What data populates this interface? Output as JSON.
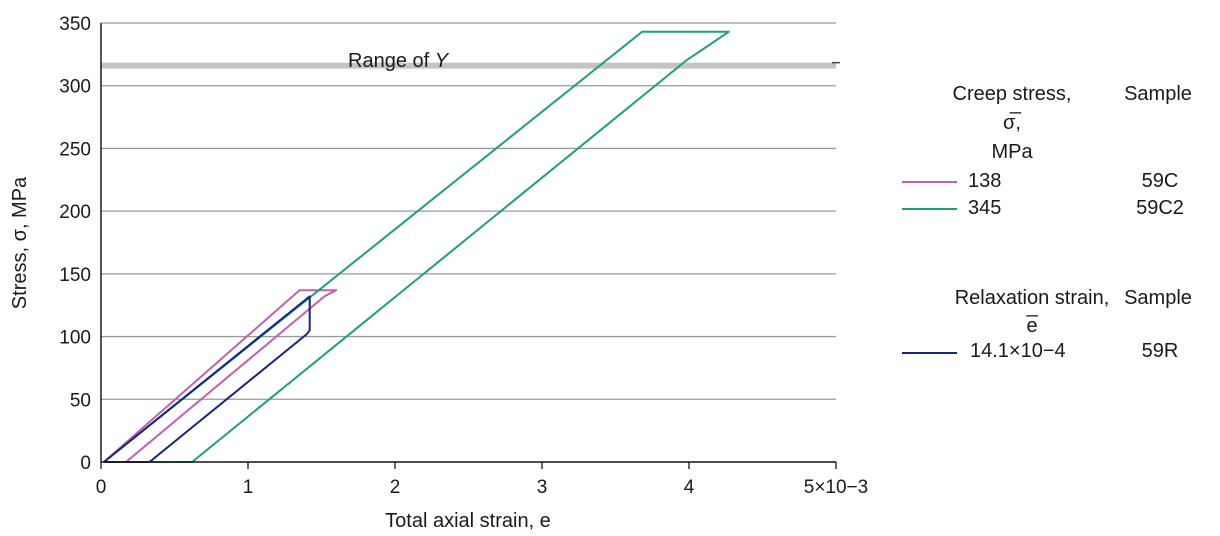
{
  "chart_data": {
    "type": "line",
    "title": "",
    "xlabel": "Total axial strain, e",
    "ylabel": "Stress, σ, MPa",
    "xlim": [
      0,
      5
    ],
    "ylim": [
      0,
      350
    ],
    "x_ticks": [
      "0",
      "1",
      "2",
      "3",
      "4",
      "5×10−3"
    ],
    "y_ticks": [
      "0",
      "50",
      "100",
      "150",
      "200",
      "250",
      "300",
      "350"
    ],
    "grid": "horizontal",
    "band": {
      "label": "Range of Y",
      "y": 316
    },
    "series": [
      {
        "name": "138",
        "sample": "59C",
        "color": "#c060b0",
        "x": [
          0.02,
          1.35,
          1.6,
          1.52,
          0.17,
          0.02
        ],
        "y": [
          0,
          137,
          137,
          132,
          0,
          0
        ]
      },
      {
        "name": "345",
        "sample": "59C2",
        "color": "#1f9f73",
        "x": [
          0.02,
          3.68,
          4.27,
          3.98,
          0.62,
          0.02
        ],
        "y": [
          0,
          343,
          343,
          320,
          0,
          0
        ]
      },
      {
        "name": "14.1×10−4",
        "sample": "59R",
        "color": "#1a237e",
        "x": [
          0.02,
          1.42,
          1.42,
          1.42,
          1.4,
          0.33,
          0.02
        ],
        "y": [
          0,
          132,
          115,
          105,
          102,
          0,
          0
        ]
      }
    ]
  },
  "legend": {
    "creep_title_line1": "Creep stress,",
    "creep_title_line2": "σ̅,",
    "creep_title_line3": "MPa",
    "sample_header": "Sample",
    "relax_title_line1": "Relaxation strain,",
    "relax_title_line2": "e̅"
  }
}
